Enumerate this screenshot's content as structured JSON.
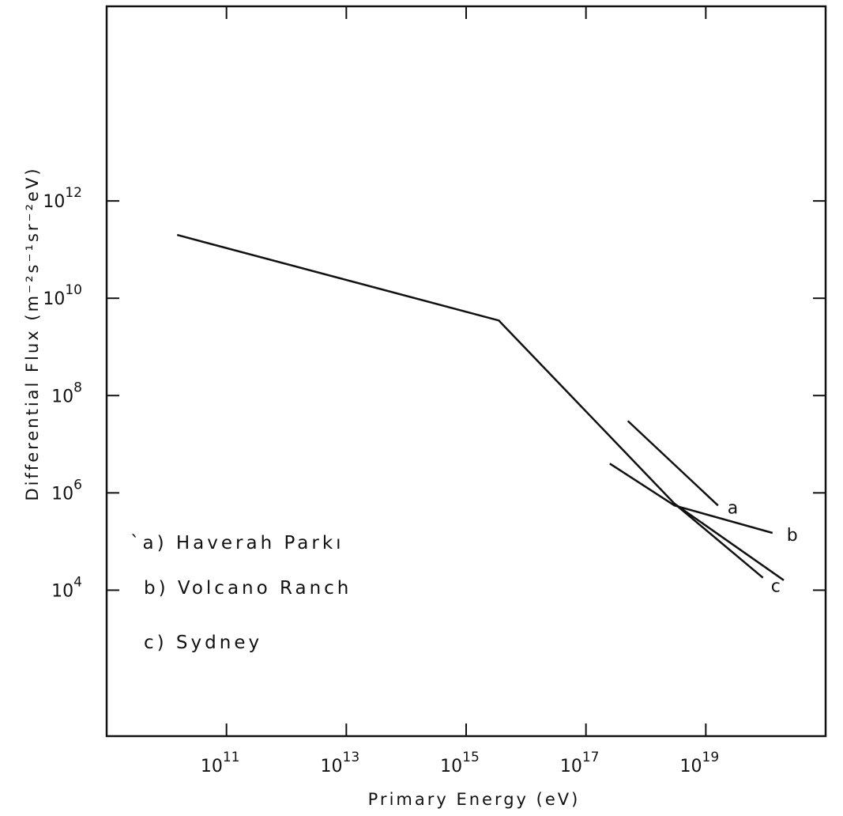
{
  "chart_data": {
    "type": "line",
    "xlabel": "Primary Energy (eV)",
    "ylabel": "Differential Flux (m⁻²s⁻¹sr⁻²eV)",
    "x_scale": "log",
    "y_scale": "log",
    "xlim": [
      1000000000.0,
      1e+21
    ],
    "ylim": [
      10.0,
      1e+16
    ],
    "x_ticks": [
      {
        "value": 100000000000.0,
        "base": "10",
        "exp": "11"
      },
      {
        "value": 10000000000000.0,
        "base": "10",
        "exp": "13"
      },
      {
        "value": 1000000000000000.0,
        "base": "10",
        "exp": "15"
      },
      {
        "value": 1e+17,
        "base": "10",
        "exp": "17"
      },
      {
        "value": 1e+19,
        "base": "10",
        "exp": "19"
      }
    ],
    "y_ticks": [
      {
        "value": 10000.0,
        "base": "10",
        "exp": "4"
      },
      {
        "value": 1000000.0,
        "base": "10",
        "exp": "6"
      },
      {
        "value": 100000000.0,
        "base": "10",
        "exp": "8"
      },
      {
        "value": 10000000000.0,
        "base": "10",
        "exp": "10"
      },
      {
        "value": 1000000000000.0,
        "base": "10",
        "exp": "12"
      }
    ],
    "grid": false,
    "series": [
      {
        "points": [
          [
            15000000000.0,
            200000000000.0
          ],
          [
            3500000000000000.0,
            3500000000.0
          ],
          [
            3e+18,
            600000.0
          ],
          [
            2e+20,
            16000.0
          ]
        ]
      },
      {
        "name": "a",
        "points": [
          [
            5e+17,
            30000000.0
          ],
          [
            1.6e+19,
            550000.0
          ]
        ]
      },
      {
        "name": "b",
        "points": [
          [
            2.5e+17,
            4000000.0
          ],
          [
            3e+18,
            550000.0
          ],
          [
            1.3e+20,
            150000.0
          ]
        ]
      },
      {
        "name": "c",
        "points": [
          [
            3e+18,
            600000.0
          ],
          [
            9e+19,
            18000.0
          ]
        ]
      }
    ],
    "legend": {
      "position": "lower-left",
      "entries": [
        {
          "text": "`a) Haverah Parkı"
        },
        {
          "text": "b) Volcano Ranch"
        },
        {
          "text": "c) Sydney"
        }
      ]
    }
  }
}
